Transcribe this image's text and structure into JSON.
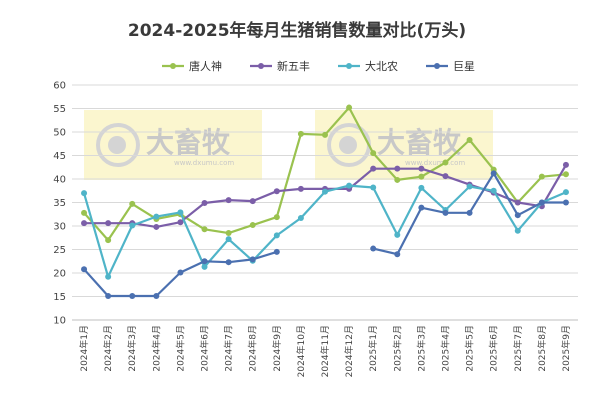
{
  "chart_data": {
    "type": "line",
    "title": "2024-2025年每月生猪销售数量对比(万头)",
    "xlabel": "",
    "ylabel": "",
    "ylim": [
      10,
      60
    ],
    "yticks": [
      10,
      15,
      20,
      25,
      30,
      35,
      40,
      45,
      50,
      55,
      60
    ],
    "grid": true,
    "legend_position": "top",
    "categories": [
      "2024年1月",
      "2024年2月",
      "2024年3月",
      "2024年4月",
      "2024年5月",
      "2024年6月",
      "2024年7月",
      "2024年8月",
      "2024年9月",
      "2024年10月",
      "2024年11月",
      "2024年12月",
      "2025年1月",
      "2025年2月",
      "2025年3月",
      "2025年4月",
      "2025年5月",
      "2025年6月",
      "2025年7月",
      "2025年8月",
      "2025年9月"
    ],
    "series": [
      {
        "name": "唐人神",
        "color": "#9ac24f",
        "values": [
          32.8,
          27.0,
          34.7,
          31.5,
          32.5,
          29.3,
          28.5,
          30.2,
          31.9,
          49.6,
          49.4,
          55.2,
          45.5,
          39.8,
          40.5,
          43.5,
          48.3,
          42.0,
          35.0,
          40.5,
          41.0
        ]
      },
      {
        "name": "新五丰",
        "color": "#7b5ea8",
        "values": [
          30.6,
          30.6,
          30.6,
          29.8,
          30.8,
          34.9,
          35.5,
          35.3,
          37.4,
          37.9,
          37.9,
          37.9,
          42.2,
          42.2,
          42.2,
          40.6,
          38.8,
          37.1,
          35.0,
          34.2,
          43.0
        ]
      },
      {
        "name": "大北农",
        "color": "#4fb4c8",
        "values": [
          37.0,
          19.2,
          30.1,
          32.0,
          32.9,
          21.3,
          27.2,
          22.6,
          28.0,
          31.7,
          37.3,
          38.6,
          38.2,
          28.1,
          38.1,
          33.4,
          38.4,
          37.5,
          29.0,
          35.0,
          37.2
        ]
      },
      {
        "name": "巨星",
        "color": "#4b70b0",
        "values": [
          20.8,
          15.1,
          15.1,
          15.1,
          20.1,
          22.5,
          22.3,
          22.9,
          24.5,
          null,
          null,
          null,
          25.2,
          24.0,
          33.9,
          32.8,
          32.8,
          41.2,
          32.3,
          35.0,
          35.0
        ]
      }
    ],
    "watermark": "大畜牧",
    "watermark_sub": "www.dxumu.com"
  }
}
